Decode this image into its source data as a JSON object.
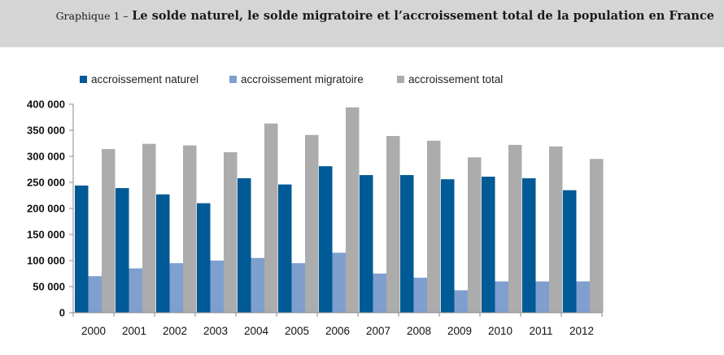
{
  "header": {
    "prefix": "Graphique 1 –",
    "title": "Le solde naturel, le solde migratoire et l’accroissement total de la population en France"
  },
  "chart_data": {
    "type": "bar",
    "categories": [
      "2000",
      "2001",
      "2002",
      "2003",
      "2004",
      "2005",
      "2006",
      "2007",
      "2008",
      "2009",
      "2010",
      "2011",
      "2012"
    ],
    "series": [
      {
        "name": "accroissement naturel",
        "color": "#005a96",
        "values": [
          244000,
          239000,
          227000,
          210000,
          258000,
          246000,
          281000,
          264000,
          264000,
          256000,
          261000,
          258000,
          235000
        ]
      },
      {
        "name": "accroissement migratoire",
        "color": "#7f9fcf",
        "values": [
          70000,
          85000,
          95000,
          100000,
          105000,
          95000,
          115000,
          75000,
          67000,
          43000,
          60000,
          60000,
          60000
        ]
      },
      {
        "name": "accroissement total",
        "color": "#acacac",
        "values": [
          314000,
          324000,
          321000,
          308000,
          363000,
          341000,
          394000,
          339000,
          330000,
          298000,
          322000,
          319000,
          295000
        ]
      }
    ],
    "ylim": [
      0,
      400000
    ],
    "yticks": [
      "0",
      "50 000",
      "100 000",
      "150 000",
      "200 000",
      "250 000",
      "300 000",
      "350 000",
      "400 000"
    ],
    "ytick_values": [
      0,
      50000,
      100000,
      150000,
      200000,
      250000,
      300000,
      350000,
      400000
    ],
    "legend_position": "top-left",
    "grid": false
  }
}
